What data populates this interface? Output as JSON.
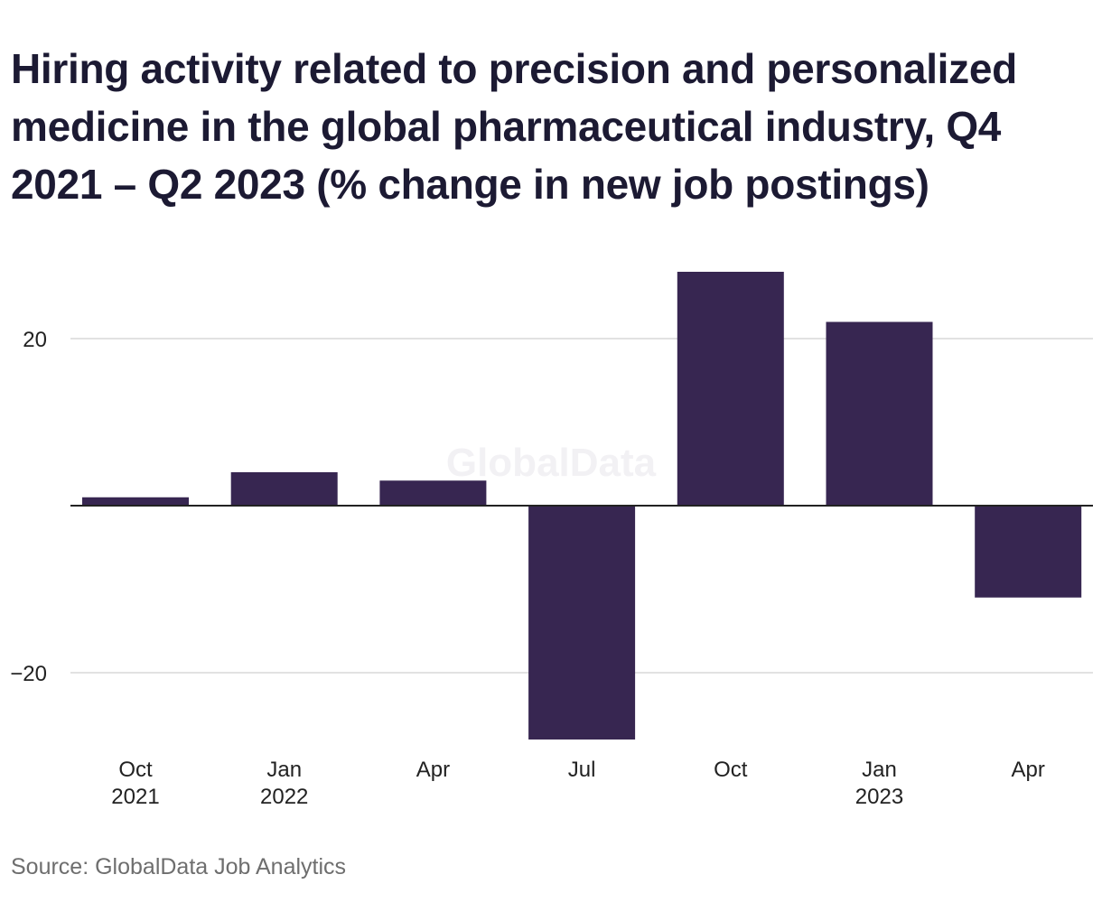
{
  "chart_data": {
    "type": "bar",
    "title": "Hiring activity related to precision and personalized medicine in the global pharmaceutical industry, Q4 2021 – Q2 2023 (% change in new job postings)",
    "source": "Source: GlobalData Job Analytics",
    "watermark": "GlobalData",
    "categories": [
      "Q4 2021",
      "Q1 2022",
      "Q2 2022",
      "Q3 2022",
      "Q4 2022",
      "Q1 2023",
      "Q2 2023"
    ],
    "x_tick_labels": [
      [
        "Oct",
        "2021"
      ],
      [
        "Jan",
        "2022"
      ],
      [
        "Apr",
        ""
      ],
      [
        "Jul",
        ""
      ],
      [
        "Oct",
        ""
      ],
      [
        "Jan",
        "2023"
      ],
      [
        "Apr",
        ""
      ]
    ],
    "values": [
      1,
      4,
      3,
      -28,
      28,
      22,
      -11
    ],
    "y_ticks": [
      20,
      -20
    ],
    "y_tick_labels": [
      "20",
      "−20"
    ],
    "ylim": [
      -30,
      32
    ],
    "xlabel": "",
    "ylabel": "",
    "grid": true,
    "bar_color": "#372651",
    "grid_color": "#d9d9d9",
    "zero_line_color": "#222222"
  }
}
